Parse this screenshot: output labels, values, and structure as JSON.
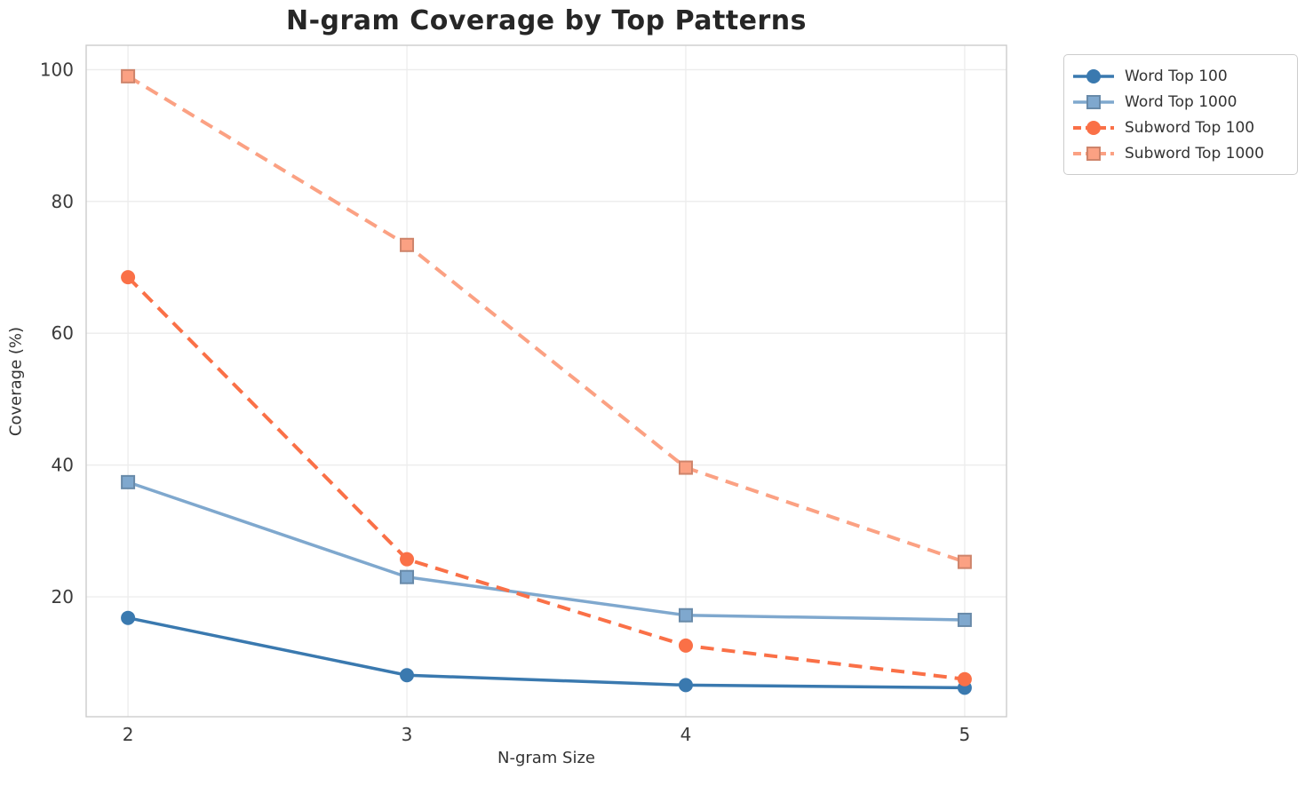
{
  "chart_data": {
    "type": "line",
    "title": "N-gram Coverage by Top Patterns",
    "xlabel": "N-gram Size",
    "ylabel": "Coverage (%)",
    "x": [
      2,
      3,
      4,
      5
    ],
    "xtick_labels": [
      "2",
      "3",
      "4",
      "5"
    ],
    "ytick_values": [
      20,
      40,
      60,
      80,
      100
    ],
    "ytick_labels": [
      "20",
      "40",
      "60",
      "80",
      "100"
    ],
    "xlim": [
      1.85,
      5.15
    ],
    "ylim": [
      1.8,
      103.7
    ],
    "grid": true,
    "legend_position": "outside-top-right",
    "series": [
      {
        "name": "Word Top 100",
        "values": [
          16.8,
          8.1,
          6.6,
          6.2
        ],
        "color": "#3a79af",
        "line_style": "solid",
        "marker": "circle"
      },
      {
        "name": "Word Top 1000",
        "values": [
          37.4,
          23.0,
          17.2,
          16.5
        ],
        "color": "#7fa8ce",
        "line_style": "solid",
        "marker": "square"
      },
      {
        "name": "Subword Top 100",
        "values": [
          68.5,
          25.7,
          12.6,
          7.5
        ],
        "color": "#fa7047",
        "line_style": "dashed",
        "marker": "circle"
      },
      {
        "name": "Subword Top 1000",
        "values": [
          99.0,
          73.4,
          39.6,
          25.3
        ],
        "color": "#fba183",
        "line_style": "dashed",
        "marker": "square"
      }
    ],
    "colors": {
      "grid": "#ececec",
      "spine": "#cccccc",
      "title_text": "#262626",
      "tick_text": "#3b3b3b",
      "axis_label_text": "#333333",
      "legend_border": "#cccccc",
      "background": "#ffffff"
    }
  }
}
